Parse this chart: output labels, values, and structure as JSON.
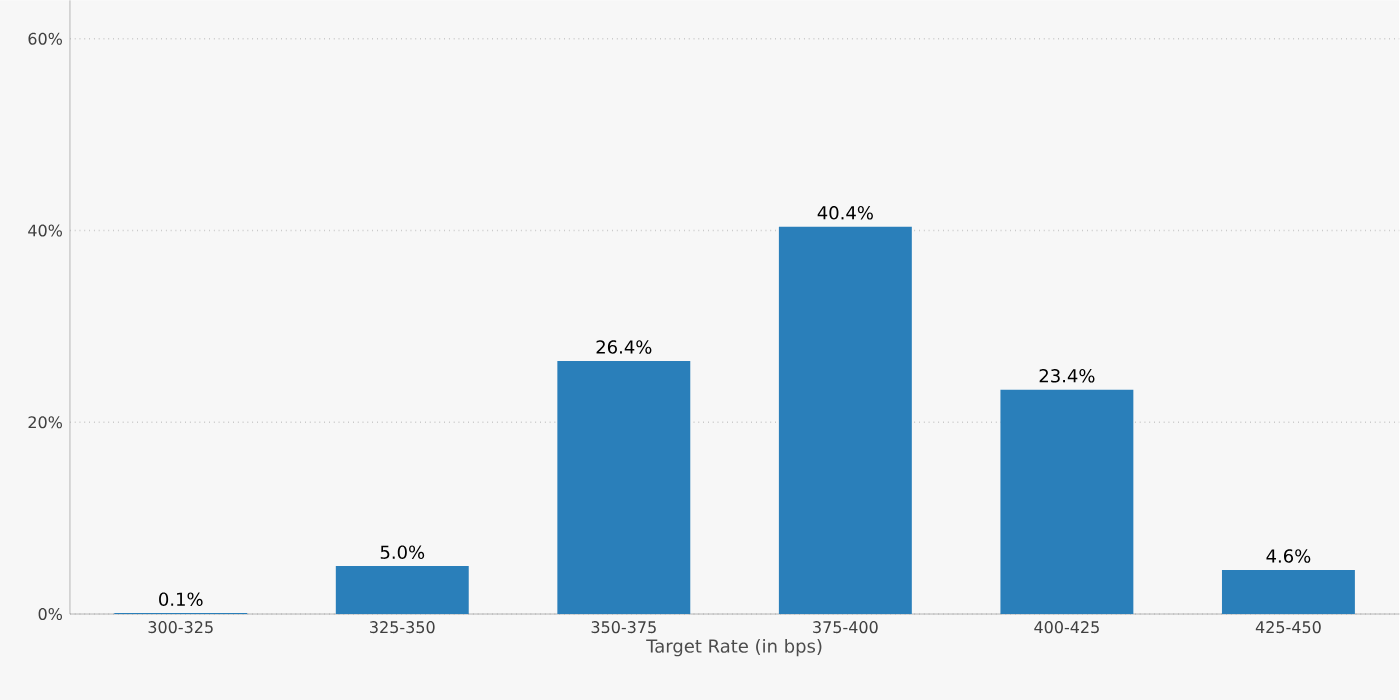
{
  "chart_data": {
    "type": "bar",
    "xlabel": "Target Rate (in bps)",
    "categories": [
      "300-325",
      "325-350",
      "350-375",
      "375-400",
      "400-425",
      "425-450"
    ],
    "values": [
      0.1,
      5.0,
      26.4,
      40.4,
      23.4,
      4.6
    ],
    "value_labels": [
      "0.1%",
      "5.0%",
      "26.4%",
      "40.4%",
      "23.4%",
      "4.6%"
    ],
    "color": "#2a7fba",
    "ylim": [
      0,
      64
    ],
    "yticks": [
      {
        "value": 0,
        "label": "0%"
      },
      {
        "value": 20,
        "label": "20%"
      },
      {
        "value": 40,
        "label": "40%"
      },
      {
        "value": 60,
        "label": "60%"
      }
    ],
    "grid": "y"
  }
}
